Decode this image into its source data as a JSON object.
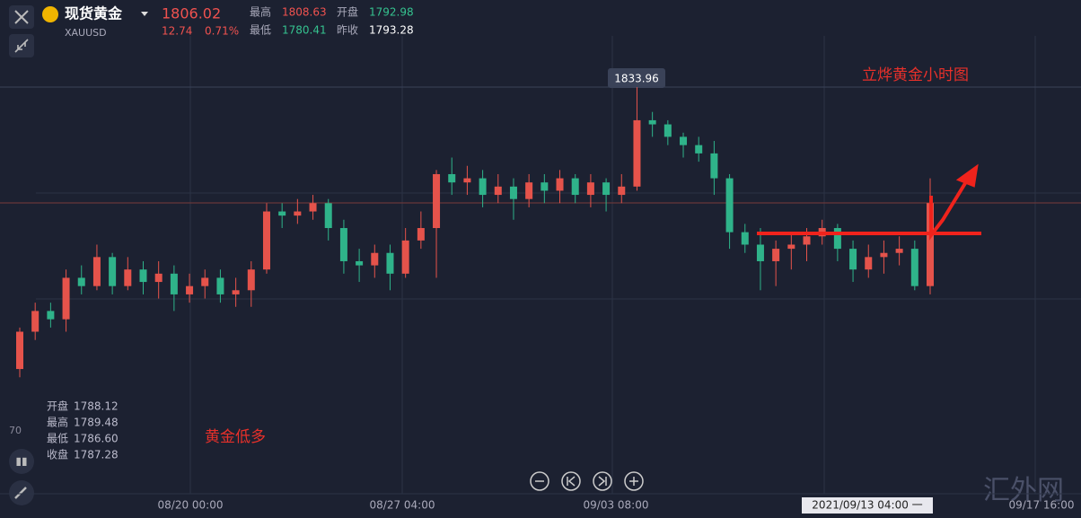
{
  "header": {
    "symbol": "现货黄金",
    "code": "XAUUSD",
    "price": "1806.02",
    "change": "12.74",
    "change_pct": "0.71%",
    "high_label": "最高",
    "high": "1808.63",
    "open_label": "开盘",
    "open": "1792.98",
    "low_label": "最低",
    "low": "1780.41",
    "prev_close_label": "昨收",
    "prev_close": "1793.28"
  },
  "ohlc_panel": {
    "open_label": "开盘",
    "open": "1788.12",
    "high_label": "最高",
    "high": "1789.48",
    "low_label": "最低",
    "low": "1786.60",
    "close_label": "收盘",
    "close": "1787.28"
  },
  "y_axis_label": "70",
  "annotations": {
    "title": "立烨黄金小时图",
    "note": "黄金低多",
    "peak_label": "1833.96"
  },
  "crosshair_time": "2021/09/13 04:00 一",
  "x_labels": [
    "08/20 00:00",
    "08/27 04:00",
    "09/03 08:00",
    "09/17 16:00"
  ],
  "watermark": "汇外网",
  "chart_data": {
    "type": "candlestick",
    "up_color": "#e5534b",
    "down_color": "#2fb38a",
    "ylim": [
      1737,
      1848.5
    ],
    "open": [
      1766,
      1775,
      1780,
      1778,
      1788,
      1786,
      1793,
      1786,
      1790,
      1787,
      1789,
      1784,
      1786,
      1788,
      1784,
      1785,
      1790,
      1804,
      1803,
      1804,
      1806,
      1800,
      1792,
      1791,
      1794,
      1789,
      1797,
      1800,
      1813,
      1811,
      1812,
      1808,
      1810,
      1807,
      1811,
      1809,
      1812,
      1808,
      1811,
      1808,
      1810,
      1826,
      1825,
      1822,
      1820,
      1818,
      1812,
      1799,
      1796,
      1792,
      1795,
      1796,
      1798,
      1800,
      1795,
      1790,
      1793,
      1794,
      1795,
      1786
    ],
    "high": [
      1776,
      1782,
      1782,
      1790,
      1791,
      1796,
      1794,
      1793,
      1792,
      1792,
      1791,
      1789,
      1790,
      1790,
      1788,
      1792,
      1806,
      1806,
      1807,
      1808,
      1807,
      1802,
      1795,
      1796,
      1796,
      1800,
      1804,
      1814,
      1817,
      1815,
      1814,
      1813,
      1812,
      1813,
      1813,
      1814,
      1813,
      1813,
      1812,
      1813,
      1833.96,
      1828,
      1826,
      1823,
      1822,
      1821,
      1813,
      1801,
      1800,
      1797,
      1799,
      1800,
      1802,
      1801,
      1797,
      1796,
      1797,
      1798,
      1797,
      1812
    ],
    "low": [
      1764,
      1773,
      1776,
      1775,
      1784,
      1785,
      1784,
      1785,
      1784,
      1783,
      1780,
      1782,
      1783,
      1782,
      1781,
      1781,
      1789,
      1800,
      1801,
      1802,
      1797,
      1789,
      1787,
      1788,
      1785,
      1788,
      1795,
      1788,
      1808,
      1808,
      1805,
      1806,
      1802,
      1805,
      1806,
      1806,
      1806,
      1805,
      1804,
      1806,
      1809,
      1822,
      1820,
      1817,
      1816,
      1808,
      1795,
      1794,
      1785,
      1786,
      1790,
      1792,
      1796,
      1792,
      1787,
      1788,
      1789,
      1791,
      1785,
      1784
    ],
    "close": [
      1775,
      1780,
      1778,
      1788,
      1786,
      1793,
      1786,
      1790,
      1787,
      1789,
      1784,
      1786,
      1788,
      1784,
      1785,
      1790,
      1804,
      1803,
      1804,
      1806,
      1800,
      1792,
      1791,
      1794,
      1789,
      1797,
      1800,
      1813,
      1811,
      1812,
      1808,
      1810,
      1807,
      1811,
      1809,
      1812,
      1808,
      1811,
      1808,
      1810,
      1826,
      1825,
      1822,
      1820,
      1818,
      1812,
      1799,
      1796,
      1792,
      1795,
      1796,
      1798,
      1800,
      1795,
      1790,
      1793,
      1794,
      1795,
      1786,
      1806.02
    ]
  }
}
